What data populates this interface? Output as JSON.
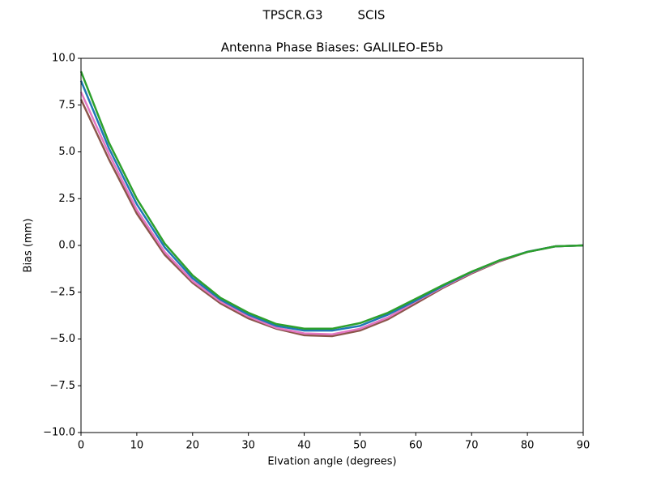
{
  "chart_data": {
    "type": "line",
    "suptitle": "TPSCR.G3         SCIS",
    "title": "Antenna Phase Biases: GALILEO-E5b",
    "x_label": "Elvation angle (degrees)",
    "y_label": "Bias (mm)",
    "x": [
      0,
      5,
      10,
      15,
      20,
      25,
      30,
      35,
      40,
      45,
      50,
      55,
      60,
      65,
      70,
      75,
      80,
      85,
      90
    ],
    "series": [
      {
        "color": "#8c564b",
        "values": [
          7.8,
          4.6,
          1.7,
          -0.5,
          -2.0,
          -3.1,
          -3.9,
          -4.45,
          -4.8,
          -4.85,
          -4.55,
          -3.95,
          -3.1,
          -2.25,
          -1.5,
          -0.85,
          -0.35,
          -0.05,
          0
        ]
      },
      {
        "color": "#e377c2",
        "values": [
          8.2,
          4.9,
          1.9,
          -0.35,
          -1.9,
          -3.0,
          -3.8,
          -4.4,
          -4.7,
          -4.75,
          -4.45,
          -3.85,
          -3.0,
          -2.2,
          -1.45,
          -0.82,
          -0.34,
          -0.05,
          0
        ]
      },
      {
        "color": "#1f77b4",
        "values": [
          8.8,
          5.2,
          2.2,
          -0.1,
          -1.75,
          -2.9,
          -3.7,
          -4.3,
          -4.55,
          -4.55,
          -4.3,
          -3.7,
          -2.95,
          -2.15,
          -1.42,
          -0.8,
          -0.34,
          -0.05,
          0
        ]
      },
      {
        "color": "#2ca02c",
        "values": [
          9.3,
          5.5,
          2.5,
          0.1,
          -1.6,
          -2.8,
          -3.6,
          -4.2,
          -4.45,
          -4.45,
          -4.15,
          -3.6,
          -2.85,
          -2.1,
          -1.4,
          -0.8,
          -0.35,
          -0.05,
          0
        ]
      }
    ],
    "xlim": [
      0,
      90
    ],
    "xticks": [
      0,
      10,
      20,
      30,
      40,
      50,
      60,
      70,
      80,
      90
    ],
    "ylim": [
      -10,
      10
    ],
    "yticks": [
      {
        "value": -10,
        "label": "−10.0"
      },
      {
        "value": -7.5,
        "label": "−7.5"
      },
      {
        "value": -5,
        "label": "−5.0"
      },
      {
        "value": -2.5,
        "label": "−2.5"
      },
      {
        "value": 0,
        "label": "0.0"
      },
      {
        "value": 2.5,
        "label": "2.5"
      },
      {
        "value": 5,
        "label": "5.0"
      },
      {
        "value": 7.5,
        "label": "7.5"
      },
      {
        "value": 10,
        "label": "10.0"
      }
    ],
    "grid": false
  }
}
